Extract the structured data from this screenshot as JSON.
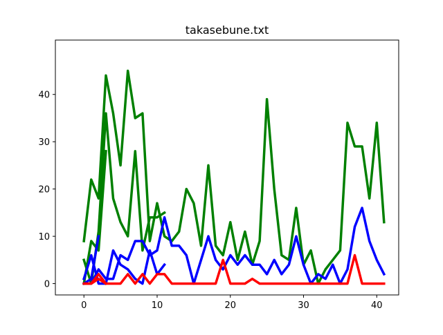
{
  "chart_data": {
    "type": "line",
    "title": "takasebune.txt",
    "xlabel": "",
    "ylabel": "",
    "xlim": [
      -3.9,
      43.0
    ],
    "ylim": [
      -2.4,
      51.5
    ],
    "x_ticks": [
      0,
      10,
      20,
      30,
      40
    ],
    "y_ticks": [
      0,
      10,
      20,
      30,
      40
    ],
    "x_tick_labels": [
      "0",
      "10",
      "20",
      "30",
      "40"
    ],
    "y_tick_labels": [
      "0",
      "10",
      "20",
      "30",
      "40"
    ],
    "grid": false,
    "legend": "none",
    "series": [
      {
        "color": "#008000",
        "x": [
          0,
          1,
          2,
          3,
          4,
          5,
          6,
          7,
          8,
          9,
          10,
          11,
          12,
          13,
          14,
          15,
          16,
          17,
          18,
          19,
          20,
          21,
          22,
          23,
          24,
          25,
          26,
          27,
          28,
          29,
          30,
          31,
          32,
          33,
          34,
          35,
          36,
          37,
          38,
          39,
          40,
          41
        ],
        "values": [
          9,
          22,
          18,
          44,
          36,
          25,
          45,
          35,
          36,
          9,
          17,
          10,
          9,
          11,
          20,
          17,
          8,
          25,
          8,
          6,
          13,
          5,
          11,
          4,
          9,
          39,
          20,
          6,
          5,
          16,
          4,
          7,
          0,
          3,
          5,
          7,
          34,
          29,
          29,
          18,
          34,
          13
        ]
      },
      {
        "color": "#008000",
        "x": [
          0,
          1,
          2,
          3,
          4,
          5,
          6,
          7,
          8,
          9,
          10,
          11
        ],
        "values": [
          5,
          0,
          11,
          36,
          18,
          13,
          10,
          28,
          7,
          14,
          14,
          15
        ]
      },
      {
        "color": "#008000",
        "x": [
          0,
          1,
          2,
          3
        ],
        "values": [
          0,
          9,
          7,
          28
        ]
      },
      {
        "color": "#0000ff",
        "x": [
          0,
          1,
          2,
          3,
          4,
          5,
          6,
          7,
          8,
          9,
          10,
          11,
          12,
          13,
          14,
          15,
          16,
          17,
          18,
          19,
          20,
          21,
          22,
          23,
          24,
          25,
          26,
          27,
          28,
          29,
          30,
          31,
          32,
          33,
          34,
          35,
          36,
          37,
          38,
          39,
          40,
          41
        ],
        "values": [
          0,
          0,
          3,
          1,
          1,
          6,
          5,
          9,
          9,
          6,
          7,
          14,
          8,
          8,
          6,
          0,
          5,
          10,
          5,
          3,
          6,
          4,
          6,
          4,
          4,
          2,
          5,
          2,
          4,
          10,
          4,
          0,
          2,
          1,
          4,
          0,
          3,
          12,
          16,
          9,
          5,
          2
        ]
      },
      {
        "color": "#0000ff",
        "x": [
          0,
          1,
          2,
          3,
          4,
          5,
          6,
          7,
          8,
          9,
          10,
          11
        ],
        "values": [
          1,
          6,
          0,
          0,
          7,
          4,
          3,
          1,
          0,
          7,
          2,
          4
        ]
      },
      {
        "color": "#0000ff",
        "x": [
          0,
          1,
          2
        ],
        "values": [
          0,
          1,
          10
        ]
      },
      {
        "color": "#ff0000",
        "x": [
          0,
          1,
          2,
          3,
          4,
          5,
          6,
          7,
          8,
          9,
          10,
          11,
          12,
          13,
          14,
          15,
          16,
          17,
          18,
          19,
          20,
          21,
          22,
          23,
          24,
          25,
          26,
          27,
          28,
          29,
          30,
          31,
          32,
          33,
          34,
          35,
          36,
          37,
          38,
          39,
          40,
          41
        ],
        "values": [
          0,
          0,
          1,
          0,
          0,
          0,
          2,
          0,
          2,
          0,
          2,
          2,
          0,
          0,
          0,
          0,
          0,
          0,
          0,
          5,
          0,
          0,
          0,
          1,
          0,
          0,
          0,
          0,
          0,
          0,
          0,
          0,
          0,
          0,
          0,
          0,
          0,
          6,
          0,
          0,
          0,
          0
        ]
      },
      {
        "color": "#ff0000",
        "x": [
          0,
          1,
          2,
          3
        ],
        "values": [
          0,
          0,
          2,
          0
        ]
      }
    ]
  }
}
